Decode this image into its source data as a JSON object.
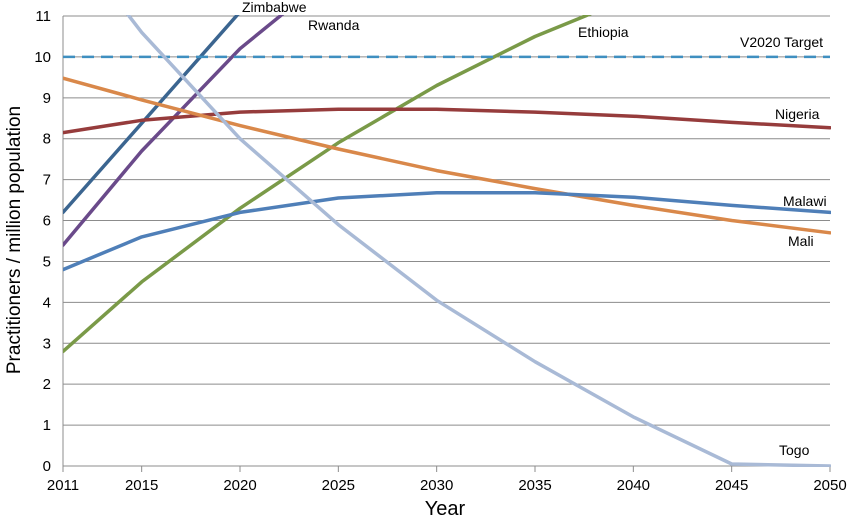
{
  "chart_data": {
    "type": "line",
    "title": "",
    "xlabel": "Year",
    "ylabel": "Practitioners / million population",
    "xlim": [
      2011,
      2050
    ],
    "ylim": [
      0,
      11
    ],
    "x_ticks": [
      2011,
      2015,
      2020,
      2025,
      2030,
      2035,
      2040,
      2045,
      2050
    ],
    "y_ticks": [
      0,
      1,
      2,
      3,
      4,
      5,
      6,
      7,
      8,
      9,
      10,
      11
    ],
    "grid": true,
    "legend": "none (series labelled directly on lines)",
    "series": [
      {
        "name": "Zimbabwe",
        "color": "#3b6590",
        "x": [
          2011,
          2020
        ],
        "y": [
          6.2,
          11.1
        ]
      },
      {
        "name": "Rwanda",
        "color": "#6a4a8a",
        "x": [
          2011,
          2015,
          2020,
          2022.3
        ],
        "y": [
          5.4,
          7.7,
          10.2,
          11.1
        ]
      },
      {
        "name": "Ethiopia",
        "color": "#7a9a48",
        "x": [
          2011,
          2015,
          2020,
          2025,
          2030,
          2035,
          2037.8
        ],
        "y": [
          2.8,
          4.5,
          6.3,
          7.9,
          9.3,
          10.5,
          11.05
        ]
      },
      {
        "name": "V2020 Target",
        "color": "#3f8fc0",
        "dashed": true,
        "x": [
          2011,
          2050
        ],
        "y": [
          10,
          10
        ]
      },
      {
        "name": "Nigeria",
        "color": "#963c3c",
        "x": [
          2011,
          2015,
          2020,
          2025,
          2030,
          2035,
          2040,
          2045,
          2050
        ],
        "y": [
          8.15,
          8.45,
          8.65,
          8.72,
          8.72,
          8.65,
          8.55,
          8.4,
          8.27
        ]
      },
      {
        "name": "Mali",
        "color": "#d9884a",
        "x": [
          2011,
          2015,
          2020,
          2025,
          2030,
          2035,
          2040,
          2045,
          2050
        ],
        "y": [
          9.48,
          8.95,
          8.32,
          7.75,
          7.22,
          6.78,
          6.37,
          6.0,
          5.7
        ]
      },
      {
        "name": "Malawi",
        "color": "#4f7fb8",
        "x": [
          2011,
          2015,
          2020,
          2025,
          2030,
          2035,
          2040,
          2045,
          2050
        ],
        "y": [
          4.8,
          5.6,
          6.2,
          6.55,
          6.68,
          6.68,
          6.57,
          6.37,
          6.2
        ]
      },
      {
        "name": "Togo",
        "color": "#a9bad6",
        "x": [
          2014.2,
          2015,
          2020,
          2025,
          2030,
          2035,
          2040,
          2045,
          2050
        ],
        "y": [
          11.1,
          10.6,
          8.0,
          5.9,
          4.05,
          2.55,
          1.2,
          0.05,
          0.0
        ]
      }
    ]
  }
}
